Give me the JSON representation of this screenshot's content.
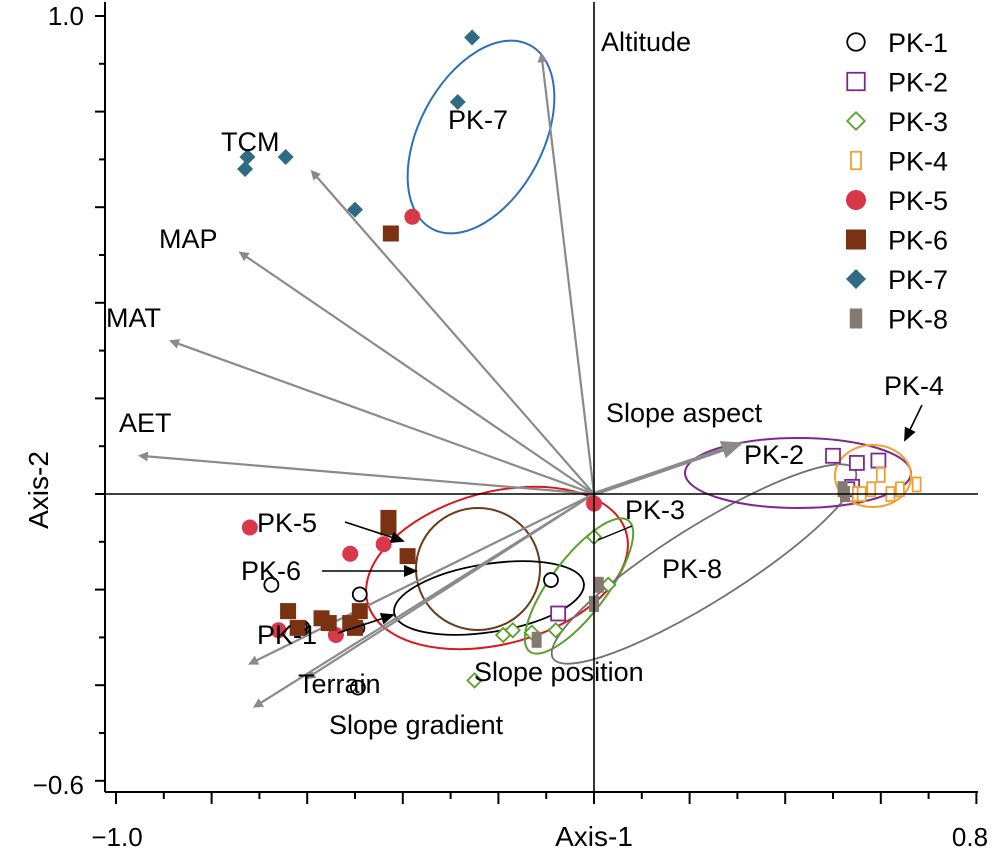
{
  "chart_data": {
    "type": "scatter",
    "xlabel": "Axis-1",
    "ylabel": "Axis-2",
    "xlim": [
      -1.0,
      0.8
    ],
    "ylim": [
      -0.6,
      1.0
    ],
    "x_tick_labels": [
      "−1.0",
      "0.8"
    ],
    "y_tick_labels": [
      "1.0",
      "−0.6"
    ],
    "grid": false,
    "legend_position": "top-right",
    "series": [
      {
        "name": "PK-1",
        "marker": "circle-open",
        "color": "#000000",
        "points": [
          [
            -0.675,
            -0.19
          ],
          [
            -0.49,
            -0.21
          ],
          [
            -0.61,
            -0.28
          ],
          [
            -0.615,
            -0.28
          ],
          [
            -0.495,
            -0.28
          ],
          [
            -0.494,
            -0.405
          ],
          [
            -0.09,
            -0.18
          ]
        ]
      },
      {
        "name": "PK-2",
        "marker": "square-open",
        "color": "#7b2a8c",
        "points": [
          [
            -0.075,
            -0.25
          ],
          [
            0.5,
            0.08
          ],
          [
            0.54,
            0.015
          ],
          [
            0.55,
            0.065
          ],
          [
            0.595,
            0.07
          ],
          [
            0.53,
            0.01
          ]
        ]
      },
      {
        "name": "PK-3",
        "marker": "diamond-open",
        "color": "#5aa02c",
        "points": [
          [
            0.0,
            -0.09
          ],
          [
            -0.25,
            -0.39
          ],
          [
            -0.13,
            -0.29
          ],
          [
            -0.17,
            -0.285
          ],
          [
            -0.19,
            -0.295
          ],
          [
            -0.08,
            -0.285
          ],
          [
            0.03,
            -0.19
          ]
        ]
      },
      {
        "name": "PK-4",
        "marker": "rect-open",
        "color": "#f0a030",
        "points": [
          [
            0.55,
            0.0
          ],
          [
            0.6,
            0.04
          ],
          [
            0.62,
            0.0
          ],
          [
            0.64,
            0.01
          ],
          [
            0.675,
            0.02
          ],
          [
            0.58,
            0.01
          ],
          [
            0.56,
            0.0
          ]
        ]
      },
      {
        "name": "PK-5",
        "marker": "circle-filled",
        "color": "#d8384a",
        "points": [
          [
            -0.38,
            0.58
          ],
          [
            0.0,
            -0.02
          ],
          [
            -0.72,
            -0.07
          ],
          [
            -0.44,
            -0.105
          ],
          [
            -0.51,
            -0.125
          ],
          [
            -0.66,
            -0.285
          ],
          [
            -0.54,
            -0.295
          ]
        ]
      },
      {
        "name": "PK-6",
        "marker": "square-filled",
        "color": "#7b3212",
        "points": [
          [
            -0.425,
            0.545
          ],
          [
            -0.43,
            -0.05
          ],
          [
            -0.43,
            -0.07
          ],
          [
            -0.39,
            -0.13
          ],
          [
            -0.64,
            -0.245
          ],
          [
            -0.49,
            -0.245
          ],
          [
            -0.51,
            -0.27
          ],
          [
            -0.555,
            -0.27
          ],
          [
            -0.62,
            -0.28
          ],
          [
            -0.5,
            -0.28
          ],
          [
            -0.57,
            -0.26
          ]
        ]
      },
      {
        "name": "PK-7",
        "marker": "diamond-filled",
        "color": "#2f6b85",
        "points": [
          [
            -0.255,
            0.955
          ],
          [
            -0.285,
            0.82
          ],
          [
            -0.725,
            0.705
          ],
          [
            -0.645,
            0.705
          ],
          [
            -0.73,
            0.68
          ],
          [
            -0.5,
            0.595
          ]
        ]
      },
      {
        "name": "PK-8",
        "marker": "bar-filled",
        "color": "#857a72",
        "points": [
          [
            0.525,
            0.0
          ],
          [
            0.52,
            0.01
          ],
          [
            -0.12,
            -0.305
          ],
          [
            0.01,
            -0.19
          ],
          [
            0.0,
            -0.23
          ]
        ]
      }
    ],
    "vectors": [
      {
        "name": "Altitude",
        "x": -0.11,
        "y": 0.92
      },
      {
        "name": "TCM",
        "x": -0.59,
        "y": 0.675
      },
      {
        "name": "MAP",
        "x": -0.74,
        "y": 0.505
      },
      {
        "name": "MAT",
        "x": -0.885,
        "y": 0.32
      },
      {
        "name": "AET",
        "x": -0.95,
        "y": 0.08
      },
      {
        "name": "Slope aspect",
        "x": 0.305,
        "y": 0.105
      },
      {
        "name": "Terrain",
        "x": -0.72,
        "y": -0.355
      },
      {
        "name": "Slope gradient",
        "x": -0.71,
        "y": -0.445
      },
      {
        "name": "Slope position",
        "x": -0.6,
        "y": -0.385
      }
    ],
    "group_labels": [
      "PK-7",
      "PK-5",
      "PK-6",
      "PK-1",
      "PK-3",
      "PK-8",
      "PK-2",
      "PK-4"
    ]
  }
}
